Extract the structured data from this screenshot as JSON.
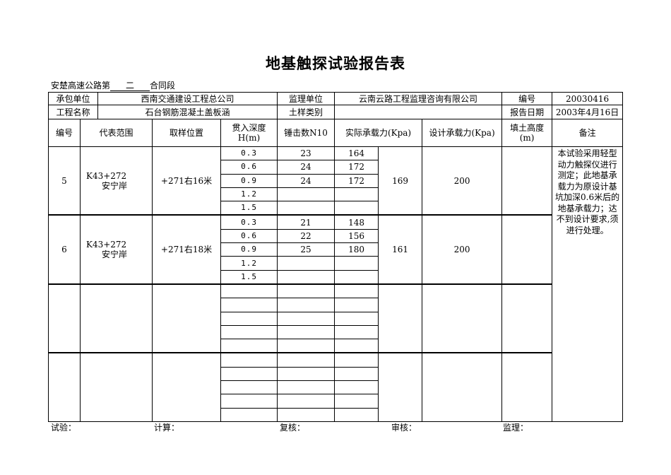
{
  "title": "地基触探试验报告表",
  "subtitle": {
    "prefix": "安楚高速公路第",
    "section": "二",
    "suffix": "合同段"
  },
  "info": {
    "contractor_label": "承包单位",
    "contractor": "西南交通建设工程总公司",
    "supervisor_label": "监理单位",
    "supervisor": "云南云路工程监理咨询有限公司",
    "number_label": "编号",
    "number": "20030416",
    "project_label": "工程名称",
    "project": "石台钢筋混凝土盖板涵",
    "soil_label": "土样类别",
    "soil": "",
    "date_label": "报告日期",
    "date": "2003年4月16日"
  },
  "headers": [
    "编号",
    "代表范围",
    "取样位置",
    "贯入深度H(m)",
    "锤击数N10",
    "实际承载力(Kpa)",
    "设计承载力(Kpa)",
    "填土高度(m)",
    "备注"
  ],
  "groups": [
    {
      "no": "5",
      "range": "K43+272\n安宁岸",
      "position": "+271右16米",
      "rows": [
        [
          "0.3",
          "23",
          "164"
        ],
        [
          "0.6",
          "24",
          "172"
        ],
        [
          "0.9",
          "24",
          "172"
        ],
        [
          "1.2",
          "",
          ""
        ],
        [
          "1.5",
          "",
          ""
        ]
      ],
      "actual": "169",
      "design": "200",
      "fill": ""
    },
    {
      "no": "6",
      "range": "K43+272\n安宁岸",
      "position": "+271右18米",
      "rows": [
        [
          "0.3",
          "21",
          "148"
        ],
        [
          "0.6",
          "22",
          "156"
        ],
        [
          "0.9",
          "25",
          "180"
        ],
        [
          "1.2",
          "",
          ""
        ],
        [
          "1.5",
          "",
          ""
        ]
      ],
      "actual": "161",
      "design": "200",
      "fill": ""
    },
    {
      "no": "",
      "range": "",
      "position": "",
      "rows": [
        [
          "",
          "",
          ""
        ],
        [
          "",
          "",
          ""
        ],
        [
          "",
          "",
          ""
        ],
        [
          "",
          "",
          ""
        ],
        [
          "",
          "",
          ""
        ]
      ],
      "actual": "",
      "design": "",
      "fill": ""
    },
    {
      "no": "",
      "range": "",
      "position": "",
      "rows": [
        [
          "",
          "",
          ""
        ],
        [
          "",
          "",
          ""
        ],
        [
          "",
          "",
          ""
        ],
        [
          "",
          "",
          ""
        ],
        [
          "",
          "",
          ""
        ]
      ],
      "actual": "",
      "design": "",
      "fill": ""
    }
  ],
  "note": "本试验采用轻型动力触探仪进行测定；此地基承载力为原设计基坑加深0.6米后的地基承载力；达不到设计要求,须进行处理。",
  "footer": [
    "试验：",
    "计算：",
    "复核：",
    "审核：",
    "监理："
  ]
}
